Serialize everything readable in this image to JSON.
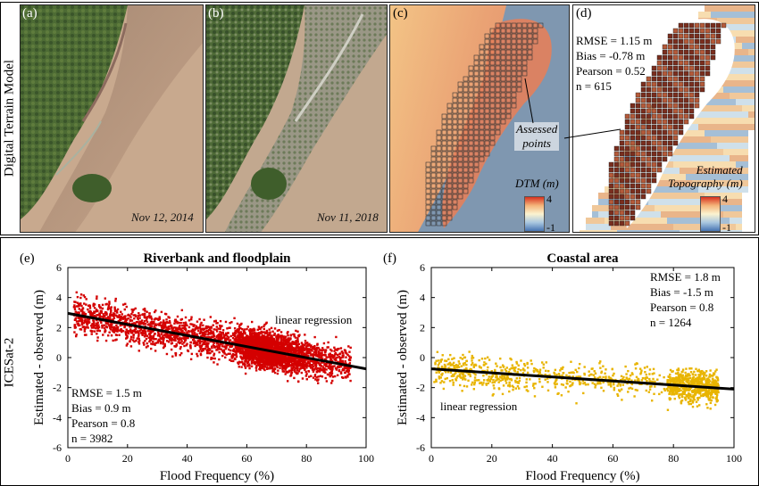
{
  "rows": {
    "top_label": "Digital Terrain Model",
    "bottom_label": "ICESat-2"
  },
  "panels_top": {
    "a": {
      "label": "(a)",
      "date": "Nov 12, 2014"
    },
    "b": {
      "label": "(b)",
      "date": "Nov 11, 2018"
    },
    "c": {
      "label": "(c)",
      "colorbar_title": "DTM (m)",
      "cbar_max": "4",
      "cbar_min": "-1"
    },
    "d": {
      "label": "(d)",
      "stats": [
        "RMSE = 1.15 m",
        "Bias = -0.78 m",
        "Pearson = 0.52",
        "n = 615"
      ],
      "annotation": [
        "Assessed",
        "points"
      ],
      "colorbar_title": [
        "Estimated",
        "Topography (m)"
      ],
      "cbar_max": "4",
      "cbar_min": "-1"
    }
  },
  "colors": {
    "river_red": "#d40000",
    "coastal_gold": "#e8b400",
    "water_blue": "#7f97b0",
    "land_sat": "#6f8a4c"
  },
  "chart_data": [
    {
      "type": "scatter",
      "panel_label": "(e)",
      "title": "Riverbank and floodplain",
      "xlabel": "Flood Frequency (%)",
      "ylabel": "Estimated - observed (m)",
      "xlim": [
        0,
        100
      ],
      "ylim": [
        -6,
        6
      ],
      "xticks": [
        0,
        20,
        40,
        60,
        80,
        100
      ],
      "yticks": [
        -6,
        -4,
        -2,
        0,
        2,
        4,
        6
      ],
      "regression": {
        "x": [
          0,
          100
        ],
        "y": [
          2.95,
          -0.75
        ],
        "label": "linear regression"
      },
      "stats": [
        "RMSE = 1.5 m",
        "Bias = 0.9 m",
        "Pearson = 0.8",
        "n = 3982"
      ],
      "n_points": 3982,
      "color": "#d40000"
    },
    {
      "type": "scatter",
      "panel_label": "(f)",
      "title": "Coastal area",
      "xlabel": "Flood Frequency (%)",
      "ylabel": "Estimated - observed (m)",
      "xlim": [
        0,
        100
      ],
      "ylim": [
        -6,
        6
      ],
      "xticks": [
        0,
        20,
        40,
        60,
        80,
        100
      ],
      "yticks": [
        -6,
        -4,
        -2,
        0,
        2,
        4,
        6
      ],
      "regression": {
        "x": [
          0,
          100
        ],
        "y": [
          -0.75,
          -2.1
        ],
        "label": "linear regression"
      },
      "stats": [
        "RMSE = 1.8 m",
        "Bias = -1.5 m",
        "Pearson = 0.8",
        "n = 1264"
      ],
      "n_points": 1264,
      "color": "#e8b400"
    }
  ]
}
